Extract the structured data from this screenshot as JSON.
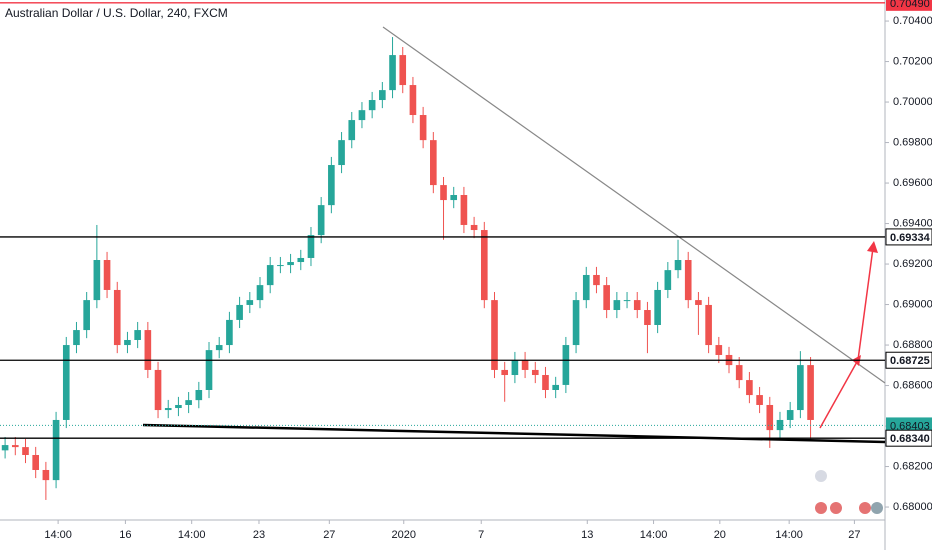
{
  "chart_data": {
    "type": "candlestick",
    "title": "Australian Dollar / U.S. Dollar, 240, FXCM",
    "up_color": "#26a69a",
    "down_color": "#ef5350",
    "candles": [
      [
        0.6828,
        0.68346,
        0.6824,
        0.68306
      ],
      [
        0.68306,
        0.68346,
        0.68256,
        0.68296
      ],
      [
        0.68296,
        0.68336,
        0.68217,
        0.68257
      ],
      [
        0.68257,
        0.68297,
        0.68143,
        0.68183
      ],
      [
        0.68183,
        0.68223,
        0.68035,
        0.68133
      ],
      [
        0.68133,
        0.6847,
        0.68093,
        0.6843
      ],
      [
        0.6843,
        0.6884,
        0.6839,
        0.688
      ],
      [
        0.688,
        0.68914,
        0.6876,
        0.68874
      ],
      [
        0.68874,
        0.69062,
        0.68834,
        0.69022
      ],
      [
        0.69022,
        0.69393,
        0.68982,
        0.6922
      ],
      [
        0.6922,
        0.6926,
        0.69032,
        0.69072
      ],
      [
        0.69072,
        0.69112,
        0.6876,
        0.688
      ],
      [
        0.688,
        0.68865,
        0.6876,
        0.68825
      ],
      [
        0.68825,
        0.68914,
        0.68785,
        0.68874
      ],
      [
        0.68874,
        0.68914,
        0.68637,
        0.68677
      ],
      [
        0.68677,
        0.68717,
        0.68439,
        0.68479
      ],
      [
        0.68479,
        0.68529,
        0.68439,
        0.68489
      ],
      [
        0.68489,
        0.68544,
        0.68449,
        0.68504
      ],
      [
        0.68504,
        0.68568,
        0.68464,
        0.68528
      ],
      [
        0.68528,
        0.68618,
        0.68488,
        0.68578
      ],
      [
        0.68578,
        0.68815,
        0.68538,
        0.68775
      ],
      [
        0.68775,
        0.6884,
        0.68735,
        0.688
      ],
      [
        0.688,
        0.68964,
        0.6876,
        0.68924
      ],
      [
        0.68924,
        0.69038,
        0.68884,
        0.68998
      ],
      [
        0.68998,
        0.69062,
        0.68958,
        0.69022
      ],
      [
        0.69022,
        0.69136,
        0.68982,
        0.69096
      ],
      [
        0.69096,
        0.69235,
        0.69056,
        0.69195
      ],
      [
        0.69195,
        0.69235,
        0.69155,
        0.69195
      ],
      [
        0.69195,
        0.6925,
        0.69155,
        0.6921
      ],
      [
        0.6921,
        0.6927,
        0.6917,
        0.6923
      ],
      [
        0.6923,
        0.69383,
        0.6919,
        0.69343
      ],
      [
        0.69343,
        0.69531,
        0.69303,
        0.69491
      ],
      [
        0.69491,
        0.69729,
        0.69451,
        0.69689
      ],
      [
        0.69689,
        0.69852,
        0.69649,
        0.69812
      ],
      [
        0.69812,
        0.69951,
        0.69772,
        0.69911
      ],
      [
        0.69911,
        0.7,
        0.69871,
        0.6996
      ],
      [
        0.6996,
        0.7005,
        0.6992,
        0.7001
      ],
      [
        0.7001,
        0.70099,
        0.6997,
        0.70059
      ],
      [
        0.70059,
        0.70321,
        0.70019,
        0.70232
      ],
      [
        0.70232,
        0.70272,
        0.70044,
        0.70084
      ],
      [
        0.70084,
        0.70124,
        0.69896,
        0.69936
      ],
      [
        0.69936,
        0.69976,
        0.69772,
        0.69812
      ],
      [
        0.69812,
        0.69852,
        0.6955,
        0.6959
      ],
      [
        0.6959,
        0.6963,
        0.6932,
        0.69516
      ],
      [
        0.69516,
        0.69581,
        0.69476,
        0.69541
      ],
      [
        0.69541,
        0.69581,
        0.69353,
        0.69393
      ],
      [
        0.69393,
        0.69433,
        0.69328,
        0.69368
      ],
      [
        0.69368,
        0.69408,
        0.68982,
        0.69022
      ],
      [
        0.69022,
        0.69062,
        0.68637,
        0.68677
      ],
      [
        0.68677,
        0.68717,
        0.6852,
        0.68652
      ],
      [
        0.68652,
        0.68766,
        0.68612,
        0.68726
      ],
      [
        0.68726,
        0.68766,
        0.68637,
        0.68677
      ],
      [
        0.68677,
        0.68717,
        0.68612,
        0.68652
      ],
      [
        0.68652,
        0.68692,
        0.68538,
        0.68578
      ],
      [
        0.68578,
        0.68643,
        0.68538,
        0.68603
      ],
      [
        0.68603,
        0.6884,
        0.68563,
        0.688
      ],
      [
        0.688,
        0.69062,
        0.6876,
        0.69022
      ],
      [
        0.69022,
        0.69186,
        0.68982,
        0.69146
      ],
      [
        0.69146,
        0.69186,
        0.69056,
        0.69096
      ],
      [
        0.69096,
        0.69136,
        0.68933,
        0.68973
      ],
      [
        0.68973,
        0.69062,
        0.68933,
        0.69022
      ],
      [
        0.69022,
        0.69062,
        0.68982,
        0.69022
      ],
      [
        0.69022,
        0.69062,
        0.68933,
        0.68973
      ],
      [
        0.68973,
        0.69013,
        0.6876,
        0.68899
      ],
      [
        0.68899,
        0.69112,
        0.68859,
        0.69072
      ],
      [
        0.69072,
        0.6921,
        0.69032,
        0.6917
      ],
      [
        0.6917,
        0.6932,
        0.6913,
        0.6922
      ],
      [
        0.6922,
        0.6926,
        0.68982,
        0.69022
      ],
      [
        0.69022,
        0.69062,
        0.6885,
        0.68998
      ],
      [
        0.68998,
        0.69038,
        0.6876,
        0.688
      ],
      [
        0.688,
        0.6884,
        0.68711,
        0.68751
      ],
      [
        0.68751,
        0.68791,
        0.68661,
        0.68701
      ],
      [
        0.68701,
        0.68741,
        0.68587,
        0.68627
      ],
      [
        0.68627,
        0.68667,
        0.68513,
        0.68553
      ],
      [
        0.68553,
        0.68593,
        0.68464,
        0.68504
      ],
      [
        0.68504,
        0.68544,
        0.68292,
        0.6838
      ],
      [
        0.6838,
        0.6847,
        0.6834,
        0.6843
      ],
      [
        0.6843,
        0.68519,
        0.6839,
        0.68479
      ],
      [
        0.68479,
        0.6877,
        0.68439,
        0.68701
      ],
      [
        0.68701,
        0.68741,
        0.6833,
        0.6843
      ]
    ],
    "xlim": [
      -0.5,
      86.3
    ],
    "xticks": [
      {
        "value": 5.2,
        "label": "14:00"
      },
      {
        "value": 11.8,
        "label": "16"
      },
      {
        "value": 18.3,
        "label": "14:00"
      },
      {
        "value": 24.9,
        "label": "23"
      },
      {
        "value": 31.8,
        "label": "27"
      },
      {
        "value": 39.1,
        "label": "2020"
      },
      {
        "value": 46.7,
        "label": "7"
      },
      {
        "value": 57.1,
        "label": "13"
      },
      {
        "value": 63.6,
        "label": "14:00"
      },
      {
        "value": 70.1,
        "label": "20"
      },
      {
        "value": 76.9,
        "label": "14:00"
      },
      {
        "value": 83.3,
        "label": "27"
      }
    ],
    "ylim": [
      0.67936,
      0.70504
    ],
    "yticks": [
      {
        "value": 0.68,
        "label": "0.68000"
      },
      {
        "value": 0.682,
        "label": "0.68200"
      },
      {
        "value": 0.684,
        "label": "0.68400"
      },
      {
        "value": 0.686,
        "label": "0.68600"
      },
      {
        "value": 0.688,
        "label": "0.68800"
      },
      {
        "value": 0.69,
        "label": "0.69000"
      },
      {
        "value": 0.692,
        "label": "0.69200"
      },
      {
        "value": 0.694,
        "label": "0.69400"
      },
      {
        "value": 0.696,
        "label": "0.69600"
      },
      {
        "value": 0.698,
        "label": "0.69800"
      },
      {
        "value": 0.7,
        "label": "0.70000"
      },
      {
        "value": 0.702,
        "label": "0.70200"
      },
      {
        "value": 0.704,
        "label": "0.70400"
      }
    ],
    "levels": [
      {
        "value": 0.7049,
        "label": "0.70490",
        "color": "#f23645",
        "style": "solid"
      },
      {
        "value": 0.69334,
        "label": "0.69334",
        "color": "#000000",
        "style": "solid"
      },
      {
        "value": 0.68725,
        "label": "0.68725",
        "color": "#000000",
        "style": "solid"
      },
      {
        "value": 0.68403,
        "label": "0.68403",
        "color": "#26a69a",
        "style": "dotted"
      },
      {
        "value": 0.6834,
        "label": "0.68340",
        "color": "#000000",
        "style": "solid"
      }
    ]
  }
}
